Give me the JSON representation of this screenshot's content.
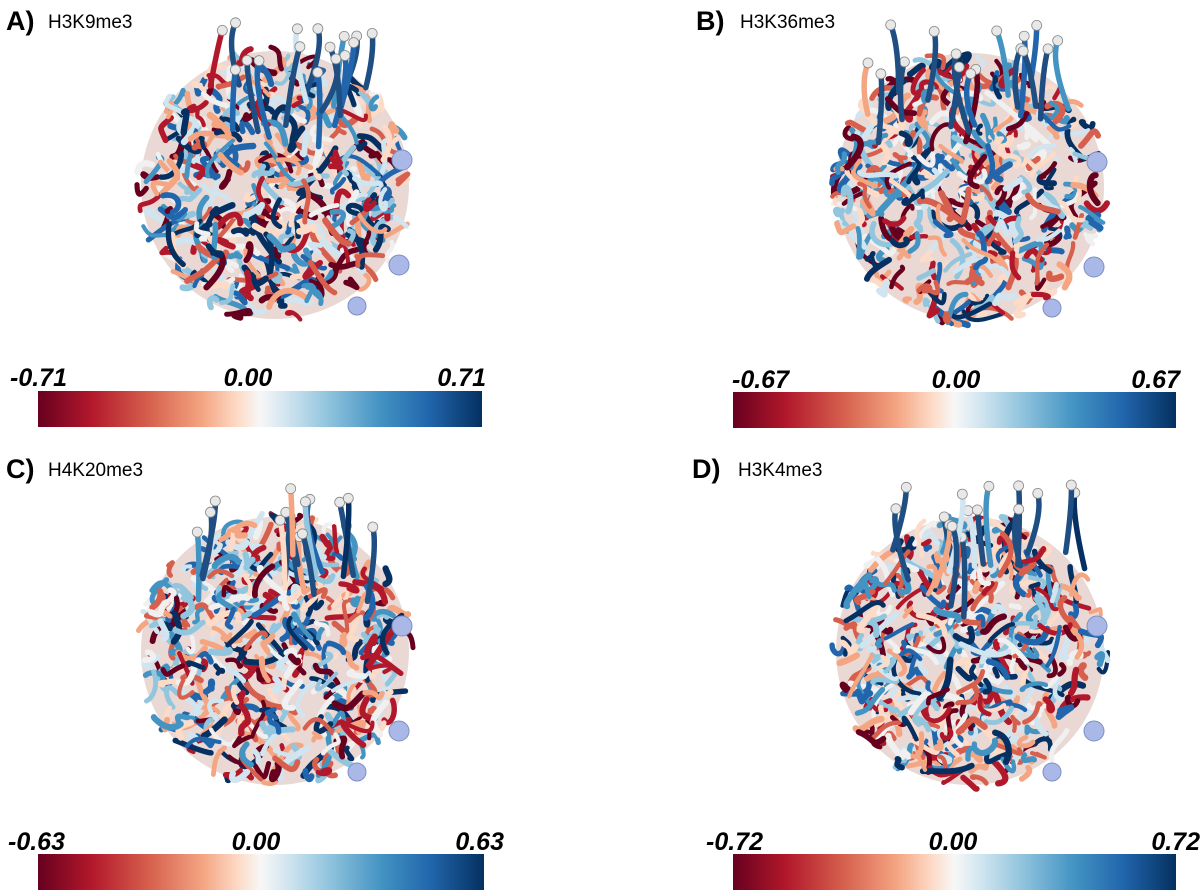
{
  "panels": [
    {
      "letter": "A)",
      "title": "H3K9me3",
      "cbar": {
        "min": "-0.71",
        "mid": "0.00",
        "max": "0.71"
      }
    },
    {
      "letter": "B)",
      "title": "H3K36me3",
      "cbar": {
        "min": "-0.67",
        "mid": "0.00",
        "max": "0.67"
      }
    },
    {
      "letter": "C)",
      "title": "H4K20me3",
      "cbar": {
        "min": "-0.63",
        "mid": "0.00",
        "max": "0.63"
      }
    },
    {
      "letter": "D)",
      "title": "H3K4me3",
      "cbar": {
        "min": "-0.72",
        "mid": "0.00",
        "max": "0.72"
      }
    }
  ],
  "colormap": {
    "negative": "#67001f",
    "neutral": "#f7f7f7",
    "positive": "#053061"
  }
}
